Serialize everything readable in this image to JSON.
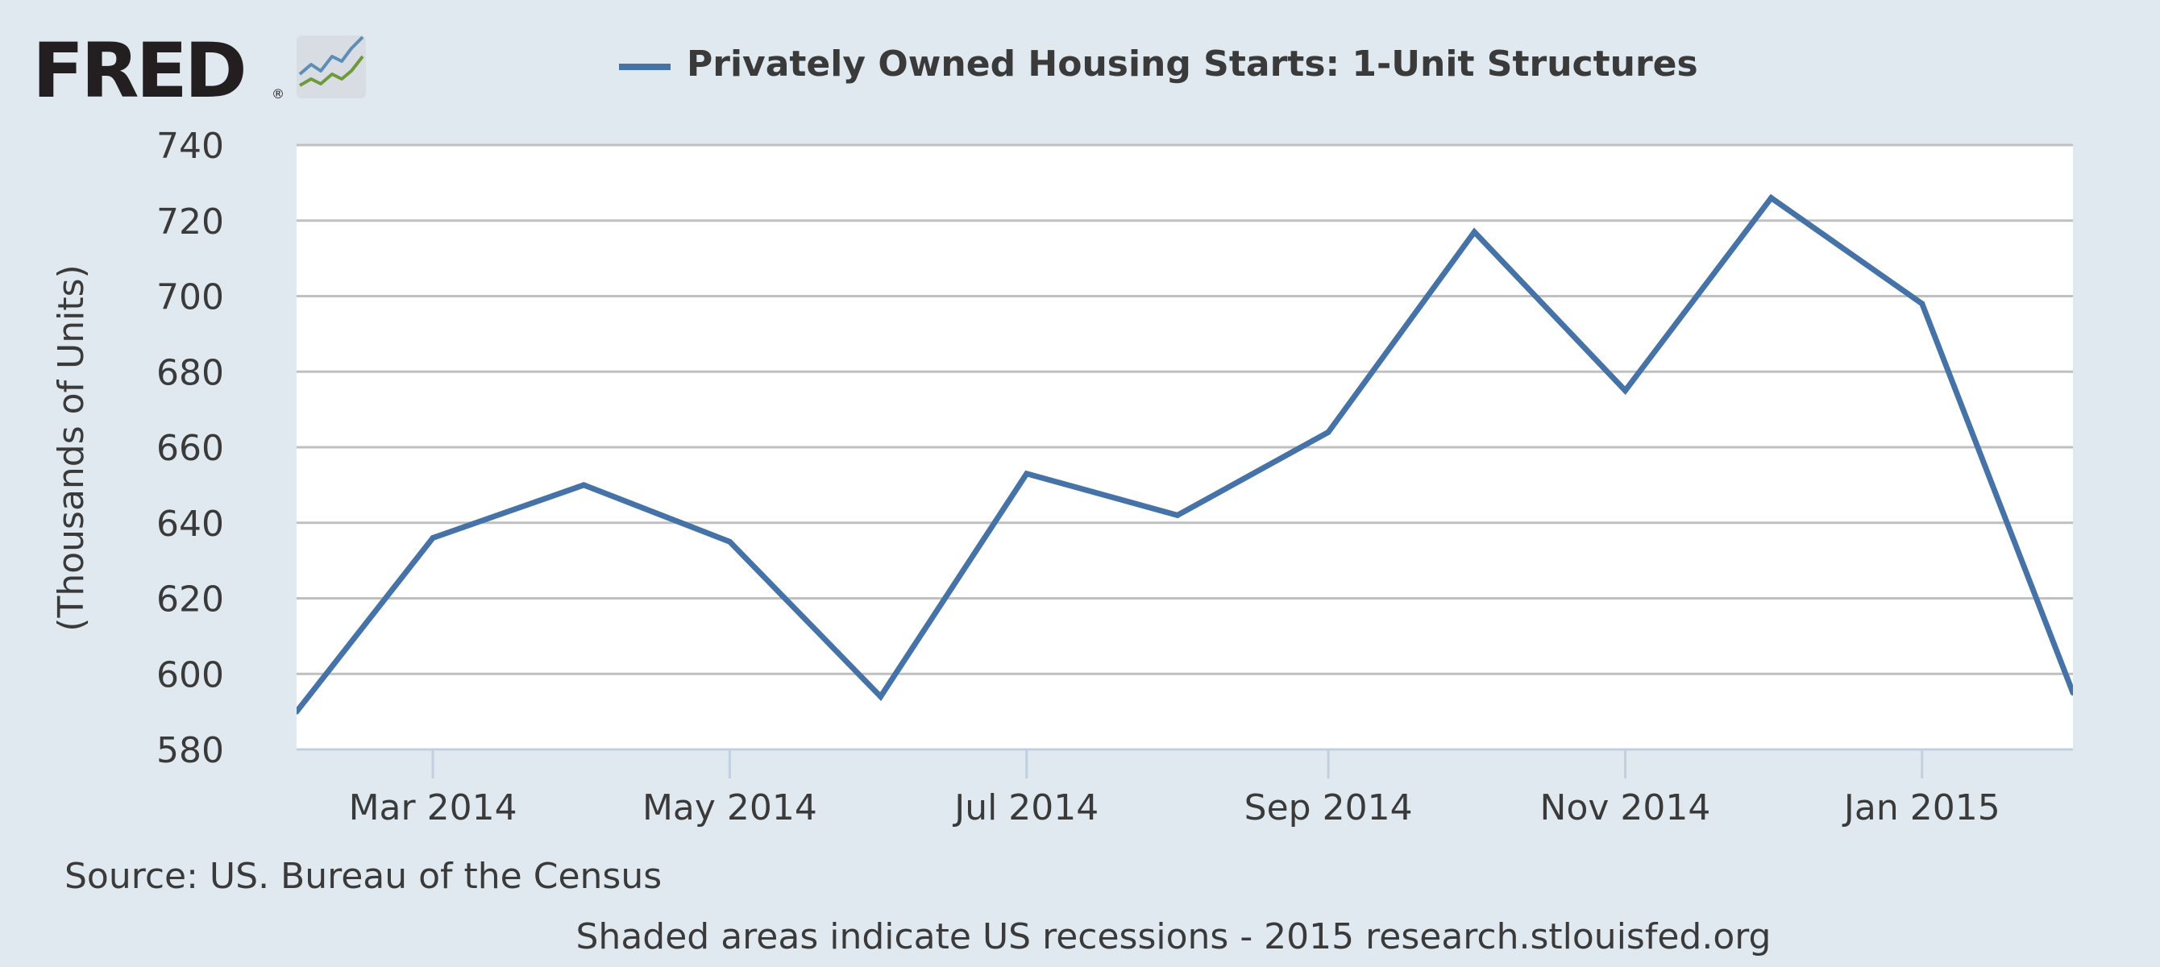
{
  "logo": {
    "text": "FRED",
    "registered": "®"
  },
  "colors": {
    "background": "#e1e9f0",
    "plot_background": "#ffffff",
    "line": "#4572a7",
    "grid": "#c0c0c0",
    "axis": "#c0d0e0",
    "text": "#3a3a3a",
    "logo_text": "#231f20",
    "logo_line_blue": "#5f8db5",
    "logo_line_green": "#6f9a3a"
  },
  "chart_data": {
    "type": "line",
    "title": "",
    "ylabel": "(Thousands of Units)",
    "xlabel": "",
    "ylim": [
      580,
      740
    ],
    "yticks": [
      580,
      600,
      620,
      640,
      660,
      680,
      700,
      720,
      740
    ],
    "x_tick_labels": [
      {
        "date": "2014-03-01",
        "label": "Mar 2014"
      },
      {
        "date": "2014-05-01",
        "label": "May 2014"
      },
      {
        "date": "2014-07-01",
        "label": "Jul 2014"
      },
      {
        "date": "2014-09-01",
        "label": "Sep 2014"
      },
      {
        "date": "2014-11-01",
        "label": "Nov 2014"
      },
      {
        "date": "2015-01-01",
        "label": "Jan 2015"
      }
    ],
    "xlim": [
      "2014-02-01",
      "2015-02-01"
    ],
    "grid": true,
    "legend_position": "top-center",
    "series": [
      {
        "name": "Privately Owned Housing Starts: 1-Unit Structures",
        "color": "#4572a7",
        "points": [
          {
            "x": "2014-02-01",
            "y": 590
          },
          {
            "x": "2014-03-01",
            "y": 636
          },
          {
            "x": "2014-04-01",
            "y": 650
          },
          {
            "x": "2014-05-01",
            "y": 635
          },
          {
            "x": "2014-06-01",
            "y": 594
          },
          {
            "x": "2014-07-01",
            "y": 653
          },
          {
            "x": "2014-08-01",
            "y": 642
          },
          {
            "x": "2014-09-01",
            "y": 664
          },
          {
            "x": "2014-10-01",
            "y": 717
          },
          {
            "x": "2014-11-01",
            "y": 675
          },
          {
            "x": "2014-12-01",
            "y": 726
          },
          {
            "x": "2015-01-01",
            "y": 698
          },
          {
            "x": "2015-02-01",
            "y": 595
          }
        ]
      }
    ]
  },
  "footer": {
    "source": "Source: US. Bureau of the Census",
    "note": "Shaded areas indicate US recessions - 2015 research.stlouisfed.org"
  }
}
